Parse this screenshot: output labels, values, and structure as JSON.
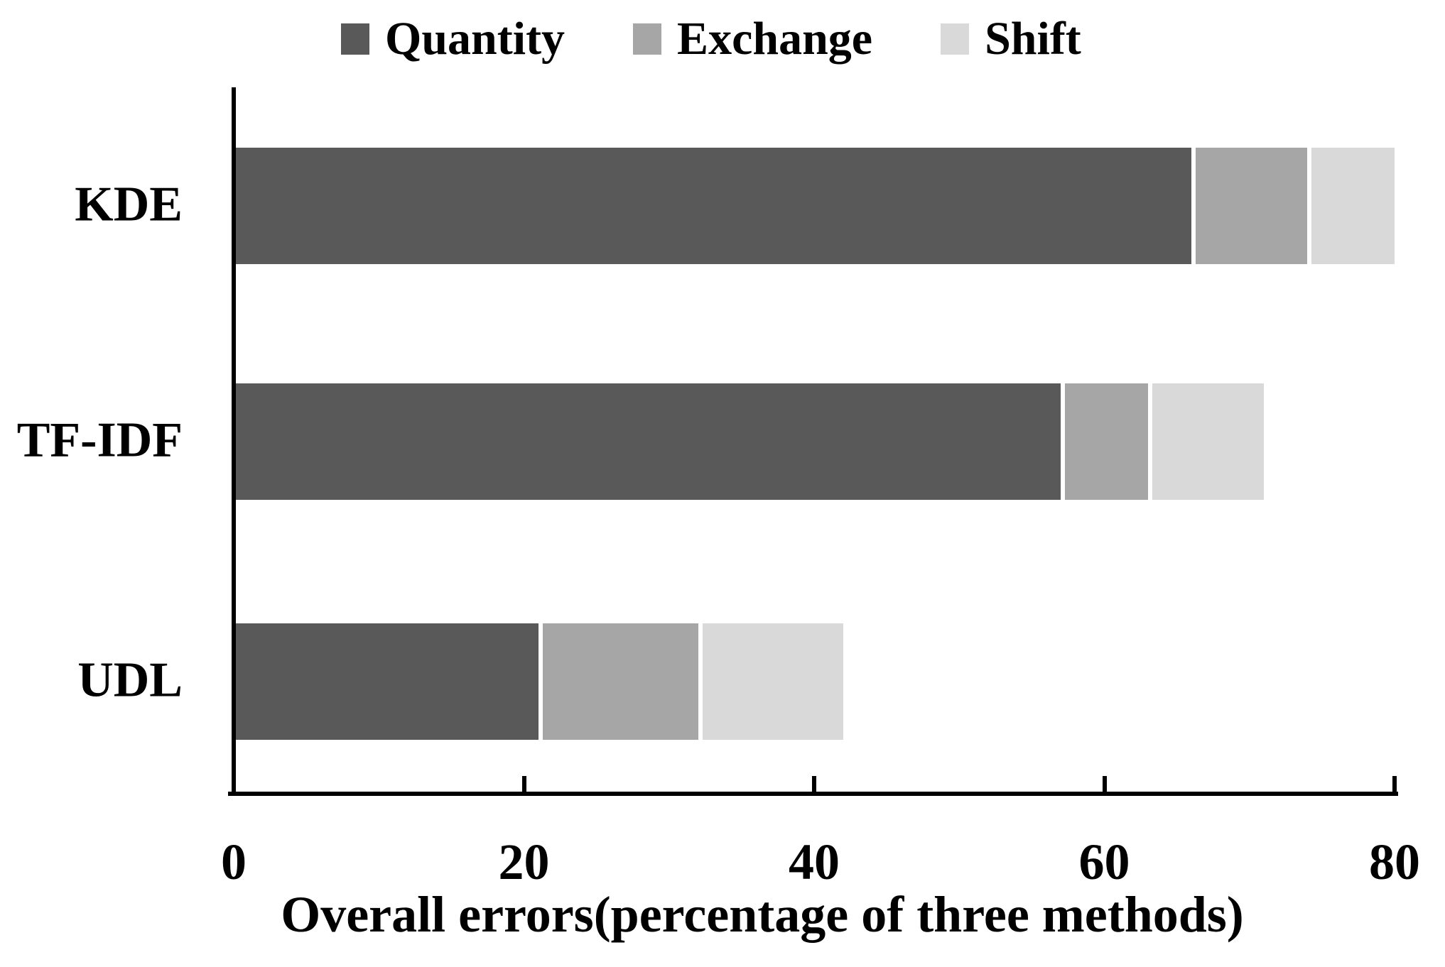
{
  "chart_data": {
    "type": "bar",
    "orientation": "horizontal-stacked",
    "title": "",
    "xlabel": "Overall errors(percentage of three methods)",
    "ylabel": "",
    "categories": [
      "KDE",
      "TF-IDF",
      "UDL"
    ],
    "series": [
      {
        "name": "Quantity",
        "color": "#595959",
        "values": [
          66,
          57,
          21
        ]
      },
      {
        "name": "Exchange",
        "color": "#a6a6a6",
        "values": [
          8,
          6,
          11
        ]
      },
      {
        "name": "Shift",
        "color": "#d9d9d9",
        "values": [
          6,
          8,
          10
        ]
      }
    ],
    "totals": [
      80,
      71,
      42
    ],
    "xlim": [
      0,
      80
    ],
    "xticks": [
      0,
      20,
      40,
      60,
      80
    ],
    "legend_position": "top",
    "grid": false,
    "axis_color": "#000000",
    "background_color": "#ffffff"
  }
}
